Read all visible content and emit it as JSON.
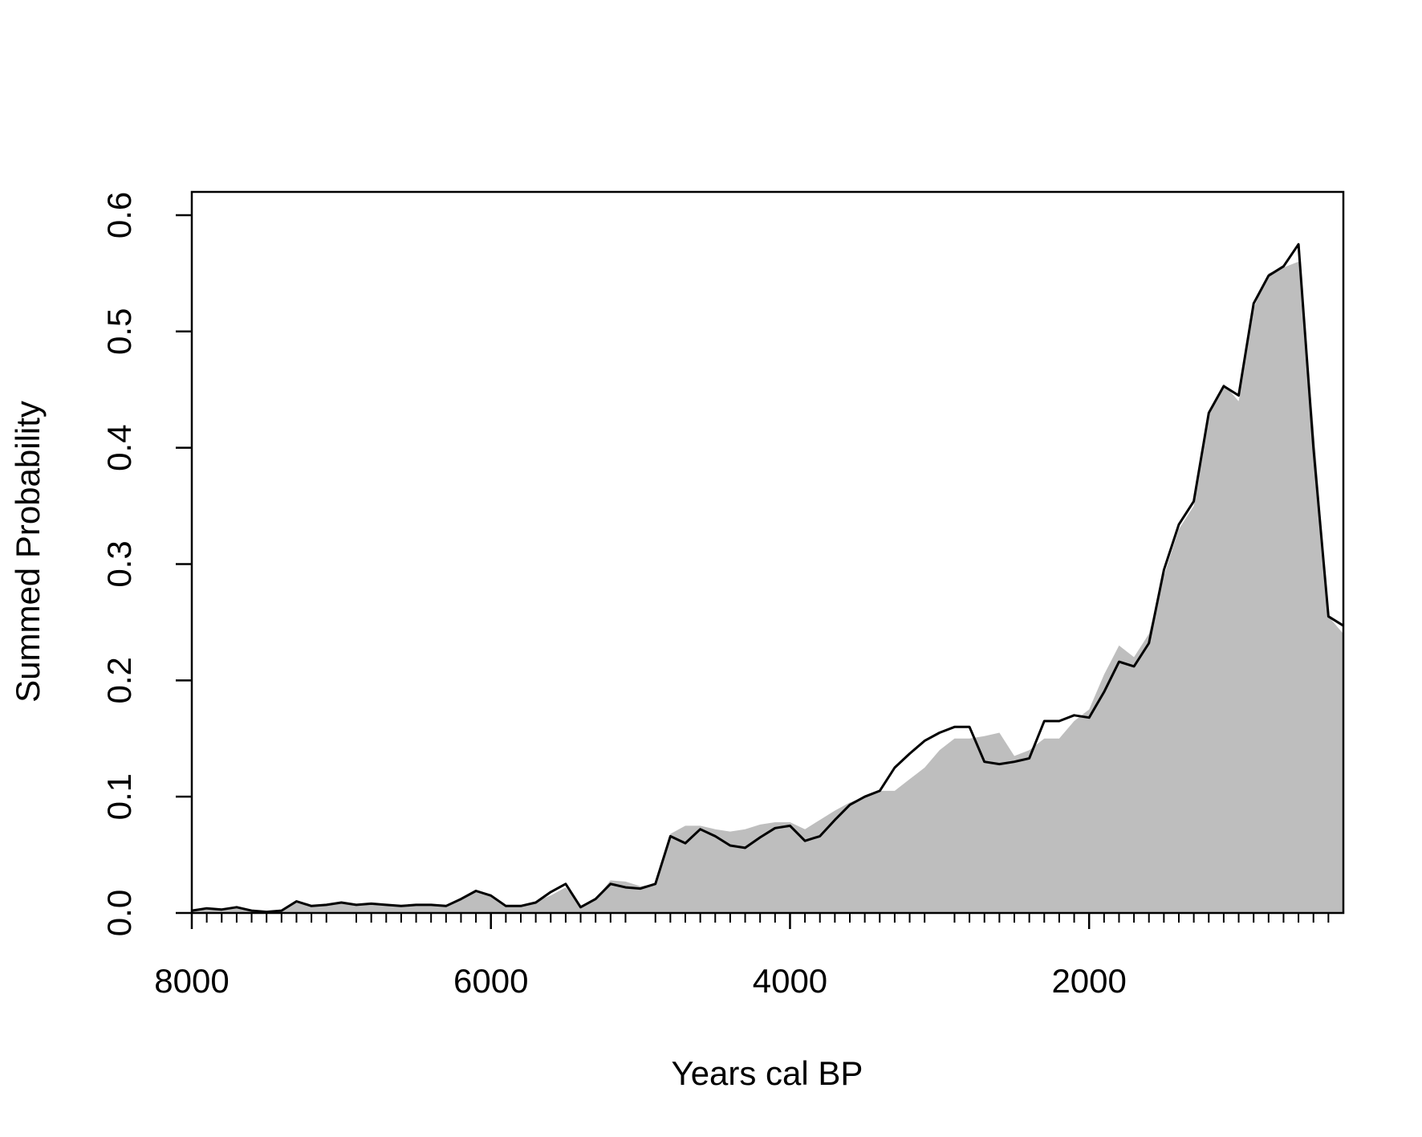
{
  "chart_data": {
    "type": "line",
    "xlabel": "Years cal BP",
    "ylabel": "Summed Probability",
    "x": [
      8000,
      7900,
      7800,
      7700,
      7600,
      7500,
      7400,
      7300,
      7200,
      7100,
      7000,
      6900,
      6800,
      6700,
      6600,
      6500,
      6400,
      6300,
      6200,
      6100,
      6000,
      5900,
      5800,
      5700,
      5600,
      5500,
      5400,
      5300,
      5200,
      5100,
      5000,
      4900,
      4800,
      4700,
      4600,
      4500,
      4400,
      4300,
      4200,
      4100,
      4000,
      3900,
      3800,
      3700,
      3600,
      3500,
      3400,
      3300,
      3200,
      3100,
      3000,
      2900,
      2800,
      2700,
      2600,
      2500,
      2400,
      2300,
      2200,
      2100,
      2000,
      1900,
      1800,
      1700,
      1600,
      1500,
      1400,
      1300,
      1200,
      1100,
      1000,
      900,
      800,
      700,
      600,
      500,
      400,
      300
    ],
    "series": [
      {
        "style": "area",
        "color": "#bebebe",
        "values": [
          0.002,
          0.004,
          0.003,
          0.005,
          0.002,
          0.001,
          0.002,
          0.01,
          0.006,
          0.007,
          0.009,
          0.007,
          0.008,
          0.007,
          0.006,
          0.007,
          0.007,
          0.006,
          0.012,
          0.019,
          0.016,
          0.006,
          0.007,
          0.01,
          0.015,
          0.022,
          0.006,
          0.012,
          0.028,
          0.027,
          0.023,
          0.025,
          0.068,
          0.075,
          0.075,
          0.072,
          0.07,
          0.072,
          0.076,
          0.078,
          0.078,
          0.072,
          0.08,
          0.088,
          0.095,
          0.1,
          0.105,
          0.105,
          0.115,
          0.125,
          0.14,
          0.15,
          0.15,
          0.152,
          0.155,
          0.135,
          0.14,
          0.15,
          0.15,
          0.165,
          0.175,
          0.205,
          0.23,
          0.22,
          0.24,
          0.29,
          0.33,
          0.35,
          0.43,
          0.455,
          0.44,
          0.52,
          0.55,
          0.555,
          0.56,
          0.42,
          0.255,
          0.24
        ]
      },
      {
        "style": "line",
        "color": "#000000",
        "values": [
          0.002,
          0.004,
          0.003,
          0.005,
          0.002,
          0.001,
          0.002,
          0.01,
          0.006,
          0.007,
          0.009,
          0.007,
          0.008,
          0.007,
          0.006,
          0.007,
          0.007,
          0.006,
          0.012,
          0.019,
          0.015,
          0.006,
          0.006,
          0.009,
          0.018,
          0.025,
          0.005,
          0.012,
          0.025,
          0.022,
          0.021,
          0.025,
          0.066,
          0.06,
          0.072,
          0.066,
          0.058,
          0.056,
          0.065,
          0.073,
          0.075,
          0.062,
          0.066,
          0.08,
          0.093,
          0.1,
          0.105,
          0.125,
          0.137,
          0.148,
          0.155,
          0.16,
          0.16,
          0.13,
          0.128,
          0.13,
          0.133,
          0.165,
          0.165,
          0.17,
          0.168,
          0.19,
          0.216,
          0.212,
          0.232,
          0.295,
          0.334,
          0.354,
          0.43,
          0.453,
          0.445,
          0.524,
          0.548,
          0.556,
          0.575,
          0.4,
          0.255,
          0.247
        ]
      }
    ],
    "xlim": [
      8000,
      300
    ],
    "ylim": [
      0,
      0.62
    ],
    "xticks": [
      8000,
      6000,
      4000,
      2000
    ],
    "xminorticks": [
      7900,
      7800,
      7700,
      7600,
      7500,
      7400,
      7300,
      7200,
      7100,
      6900,
      6800,
      6700,
      6600,
      6500,
      6400,
      6300,
      6200,
      6100,
      5900,
      5800,
      5700,
      5600,
      5500,
      5400,
      5300,
      5200,
      5100,
      4900,
      4800,
      4700,
      4600,
      4500,
      4400,
      4300,
      4200,
      4100,
      3900,
      3800,
      3700,
      3600,
      3500,
      3400,
      3300,
      3200,
      3100,
      2900,
      2800,
      2700,
      2600,
      2500,
      2400,
      2300,
      2200,
      2100,
      1900,
      1800,
      1700,
      1600,
      1500,
      1400,
      1300,
      1200,
      1100,
      1000,
      900,
      800,
      700,
      600,
      500,
      400
    ],
    "yticks": [
      {
        "value": 0,
        "label": "0.0"
      },
      0.1,
      0.2,
      0.3,
      0.4,
      0.5,
      0.6
    ]
  }
}
